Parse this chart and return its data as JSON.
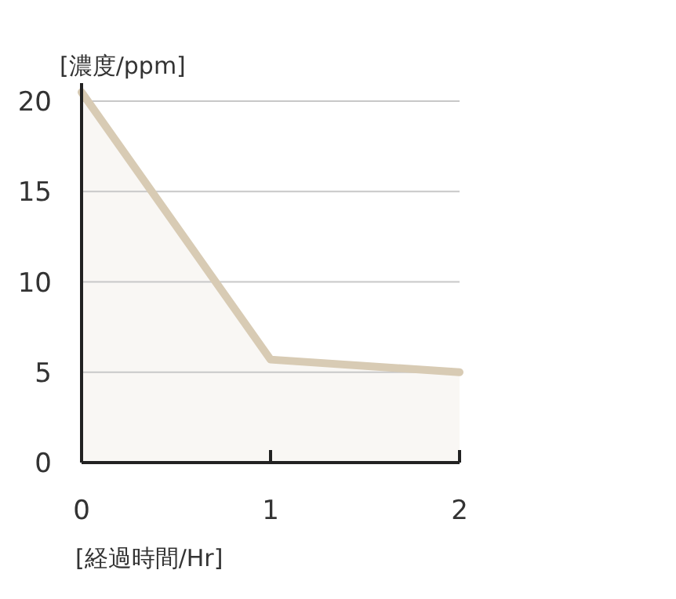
{
  "chart_data": {
    "type": "area",
    "ylabel": "[濃度/ppm]",
    "xlabel": "[経過時間/Hr]",
    "x": [
      0,
      1,
      2
    ],
    "series": [
      {
        "color": "#d8cbb4",
        "values": [
          20.5,
          5.7,
          5.0
        ]
      }
    ],
    "xlim": [
      0,
      2
    ],
    "xticks": [
      0,
      1,
      2
    ],
    "ylim": [
      0,
      21
    ],
    "yticks": [
      0,
      5,
      10,
      15,
      20
    ],
    "grid": "y"
  }
}
